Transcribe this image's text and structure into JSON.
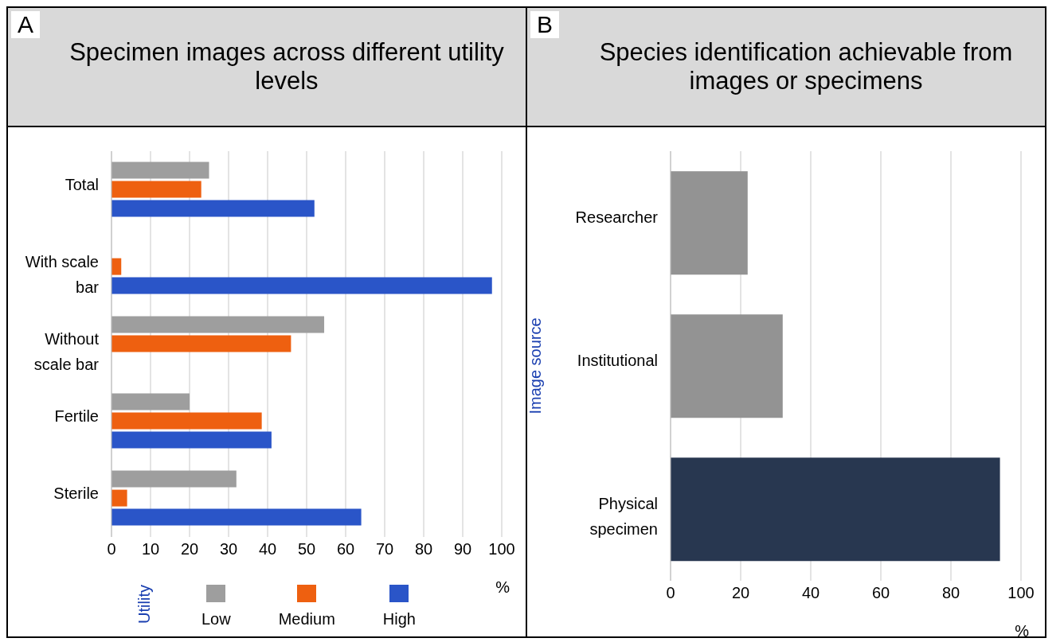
{
  "chart_data": [
    {
      "type": "bar",
      "orientation": "horizontal",
      "title": "Specimen images across different utility levels",
      "annotations": [
        "A"
      ],
      "categories": [
        "Total",
        "With scale bar",
        "Without scale bar",
        "Fertile",
        "Sterile"
      ],
      "series": [
        {
          "name": "Low",
          "color": "#9e9e9e",
          "values": [
            25,
            null,
            54.5,
            20,
            32
          ]
        },
        {
          "name": "Medium",
          "color": "#ee6010",
          "values": [
            23,
            2.5,
            46,
            38.5,
            4
          ]
        },
        {
          "name": "High",
          "color": "#2a55c8",
          "values": [
            52,
            97.5,
            null,
            41,
            64
          ]
        }
      ],
      "xlabel": "%",
      "xlim": [
        0,
        100
      ],
      "xticks": [
        0,
        10,
        20,
        30,
        40,
        50,
        60,
        70,
        80,
        90,
        100
      ],
      "grid": "x",
      "legend": "bottom",
      "legend_title": "Utility"
    },
    {
      "type": "bar",
      "orientation": "horizontal",
      "title": "Species identification achievable from images or specimens",
      "annotations": [
        "B"
      ],
      "categories": [
        "Researcher",
        "Institutional",
        "Physical specimen"
      ],
      "values": [
        22,
        32,
        94
      ],
      "colors": [
        "#939393",
        "#939393",
        "#283750"
      ],
      "ylabel": "Image source",
      "xlabel": "%",
      "xlim": [
        0,
        100
      ],
      "xticks": [
        0,
        20,
        40,
        60,
        80,
        100
      ],
      "grid": "x"
    }
  ]
}
